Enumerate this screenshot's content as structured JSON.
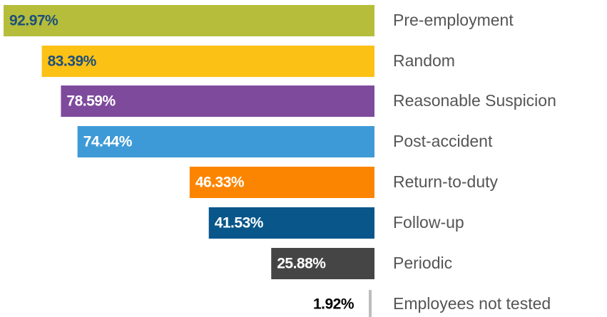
{
  "chart_data": {
    "type": "bar",
    "orientation": "horizontal",
    "categories": [
      "Pre-employment",
      "Random",
      "Reasonable Suspicion",
      "Post-accident",
      "Return-to-duty",
      "Follow-up",
      "Periodic",
      "Employees not tested"
    ],
    "values": [
      92.97,
      83.39,
      78.59,
      74.44,
      46.33,
      41.53,
      25.88,
      1.92
    ],
    "value_labels": [
      "92.97%",
      "83.39%",
      "78.59%",
      "74.44%",
      "46.33%",
      "41.53%",
      "25.88%",
      "1.92%"
    ],
    "colors": [
      "#b5bd3a",
      "#fcc115",
      "#7e4a9c",
      "#3e9ad6",
      "#fb8500",
      "#08568a",
      "#454545",
      "#bdbdbd"
    ],
    "label_colors": [
      "#1d4f7c",
      "#1d4f7c",
      "#ffffff",
      "#ffffff",
      "#ffffff",
      "#ffffff",
      "#ffffff",
      "#000000"
    ]
  }
}
